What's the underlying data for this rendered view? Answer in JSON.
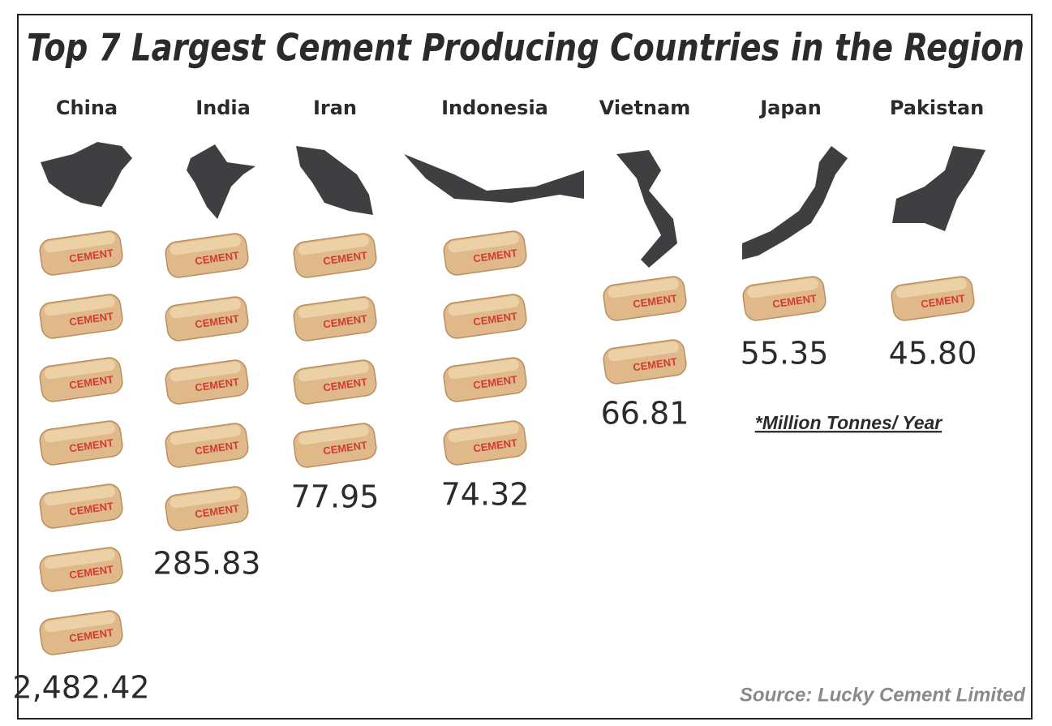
{
  "chart_data": {
    "type": "pictogram",
    "title": "Top 7 Largest Cement Producing Countries in the Region",
    "categories": [
      "China",
      "India",
      "Iran",
      "Indonesia",
      "Vietnam",
      "Japan",
      "Pakistan"
    ],
    "values": [
      2482.42,
      285.83,
      77.95,
      74.32,
      66.81,
      55.35,
      45.8
    ],
    "value_labels": [
      "2,482.42",
      "285.83",
      "77.95",
      "74.32",
      "66.81",
      "55.35",
      "45.80"
    ],
    "icon_counts": [
      7,
      5,
      4,
      4,
      2,
      1,
      1
    ],
    "icon_label": "CEMENT",
    "note": "*Million Tonnes/ Year",
    "source": "Source: Lucky Cement Limited"
  }
}
